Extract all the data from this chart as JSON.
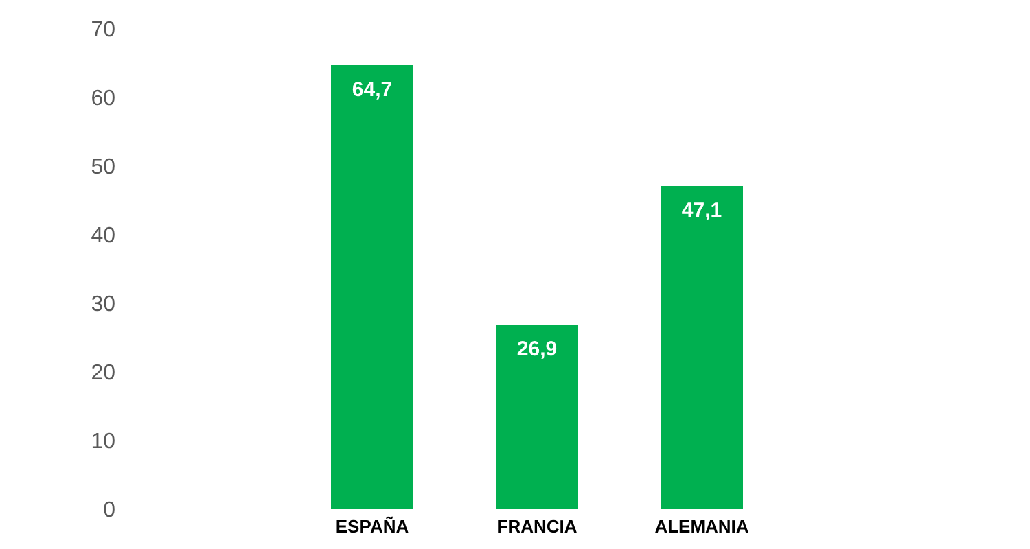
{
  "chart_data": {
    "type": "bar",
    "categories": [
      "ESPAÑA",
      "FRANCIA",
      "ALEMANIA"
    ],
    "values": [
      64.7,
      26.9,
      47.1
    ],
    "color": "#00b050",
    "value_labels": [
      "64,7",
      "26,9",
      "47,1"
    ],
    "ylim": [
      0,
      70
    ],
    "yticks": [
      0,
      10,
      20,
      30,
      40,
      50,
      60,
      70
    ],
    "grid": false,
    "legend": false
  }
}
